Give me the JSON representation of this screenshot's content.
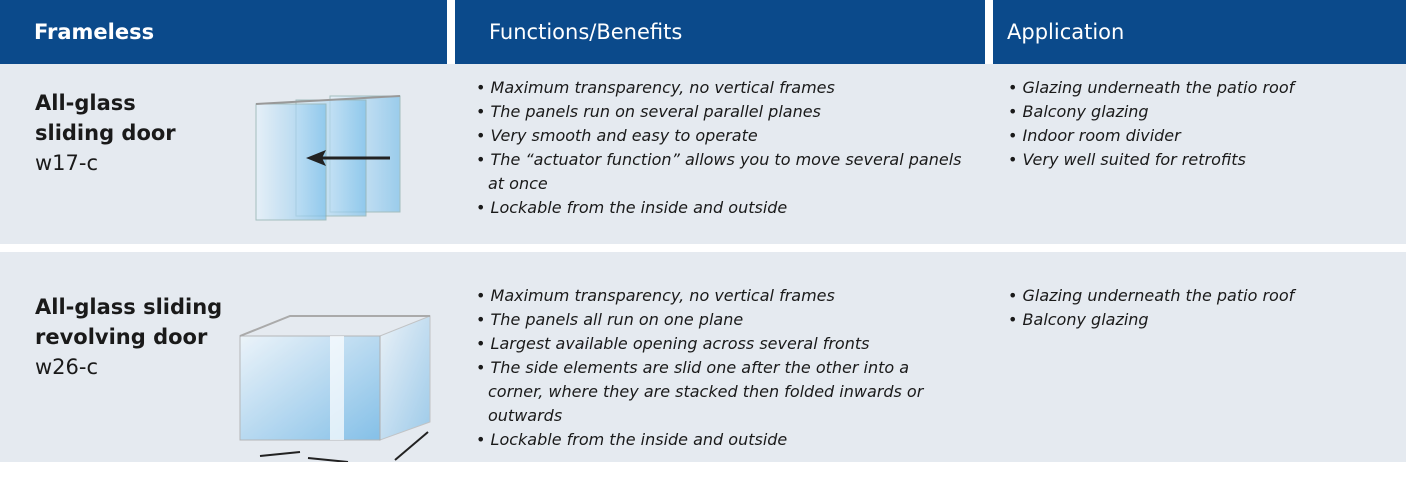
{
  "table": {
    "header": [
      "Frameless",
      "Functions/Benefits",
      "Application"
    ],
    "rows": [
      {
        "name": [
          "All-glass",
          "sliding door"
        ],
        "code": "w17-c",
        "benefits": [
          "Maximum transparency, no vertical frames",
          "The panels run on several parallel planes",
          "Very smooth and easy to operate",
          "The “actuator function” allows you to move several panels at once",
          "Lockable from the inside and outside"
        ],
        "applications": [
          "Glazing underneath the patio roof",
          "Balcony glazing",
          "Indoor room divider",
          "Very well suited for retrofits"
        ]
      },
      {
        "name": [
          "All-glass sliding",
          "revolving door"
        ],
        "code": "w26-c",
        "benefits": [
          "Maximum transparency, no vertical frames",
          "The panels all run on one plane",
          "Largest available opening across several fronts",
          "The side elements are slid one after the other into a corner, where they are stacked then folded inwards or outwards",
          "Lockable from the inside and outside"
        ],
        "applications": [
          "Glazing underneath the patio roof",
          "Balcony glazing"
        ]
      }
    ]
  }
}
